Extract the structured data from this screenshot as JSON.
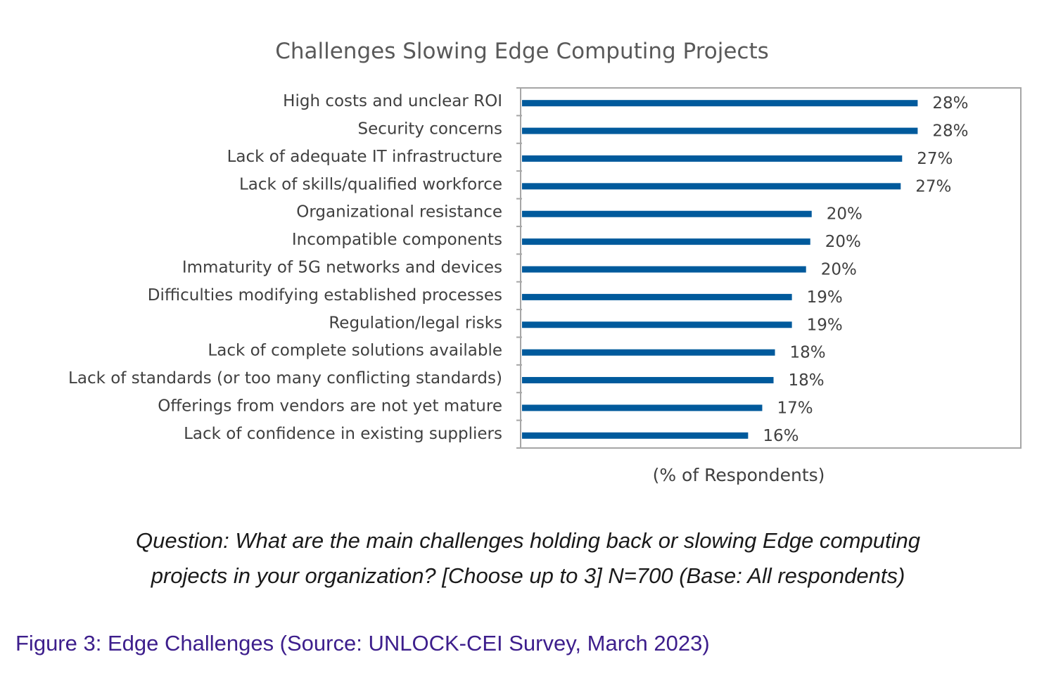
{
  "chart_data": {
    "type": "bar",
    "orientation": "horizontal",
    "title": "Challenges Slowing Edge Computing Projects",
    "xlabel": "(% of Respondents)",
    "ylabel": "",
    "categories": [
      "High costs and unclear ROI",
      "Security concerns",
      "Lack of adequate IT infrastructure",
      "Lack of skills/qualified workforce",
      "Organizational resistance",
      "Incompatible components",
      "Immaturity of 5G networks and devices",
      "Difficulties modifying established processes",
      "Regulation/legal risks",
      "Lack of complete solutions available",
      "Lack of standards (or too many conflicting standards)",
      "Offerings from vendors are not yet mature",
      "Lack of confidence in existing suppliers"
    ],
    "values": [
      28.0,
      28.0,
      26.9,
      26.8,
      20.5,
      20.4,
      20.1,
      19.1,
      19.1,
      17.9,
      17.8,
      17.0,
      16.0
    ],
    "data_labels": [
      "28%",
      "28%",
      "27%",
      "27%",
      "20%",
      "20%",
      "20%",
      "19%",
      "19%",
      "18%",
      "18%",
      "17%",
      "16%"
    ],
    "xlim": [
      0,
      35.3
    ],
    "grid": false,
    "legend": "none",
    "bar_color": "#005a9c",
    "frame_color": "#a6a6a6"
  },
  "question": "Question: What are the main challenges holding back or slowing Edge computing projects in your organization? [Choose up to 3] N=700 (Base: All respondents)",
  "caption": "Figure 3: Edge Challenges (Source: UNLOCK-CEI Survey, March 2023)"
}
